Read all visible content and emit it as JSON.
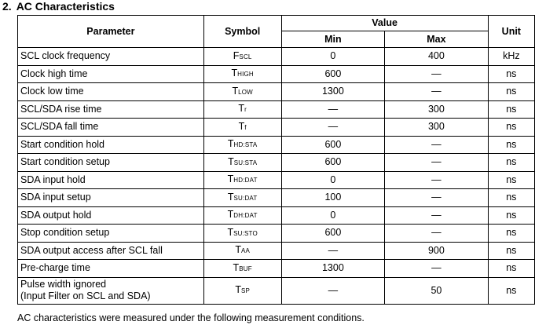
{
  "heading": {
    "number": "2.",
    "title": "AC Characteristics"
  },
  "table": {
    "headers": {
      "parameter": "Parameter",
      "symbol": "Symbol",
      "value": "Value",
      "min": "Min",
      "max": "Max",
      "unit": "Unit"
    },
    "rows": [
      {
        "parameter": "SCL clock frequency",
        "symbol": "F",
        "symbol_sub": "SCL",
        "min": "0",
        "max": "400",
        "unit": "kHz"
      },
      {
        "parameter": "Clock high time",
        "symbol": "T",
        "symbol_sub": "HIGH",
        "min": "600",
        "max": "—",
        "unit": "ns"
      },
      {
        "parameter": "Clock low time",
        "symbol": "T",
        "symbol_sub": "LOW",
        "min": "1300",
        "max": "—",
        "unit": "ns"
      },
      {
        "parameter": "SCL/SDA rise time",
        "symbol": "T",
        "symbol_sub": "r",
        "min": "—",
        "max": "300",
        "unit": "ns"
      },
      {
        "parameter": "SCL/SDA fall time",
        "symbol": "T",
        "symbol_sub": "f",
        "min": "—",
        "max": "300",
        "unit": "ns"
      },
      {
        "parameter": "Start condition hold",
        "symbol": "T",
        "symbol_sub": "HD:STA",
        "min": "600",
        "max": "—",
        "unit": "ns"
      },
      {
        "parameter": "Start condition setup",
        "symbol": "T",
        "symbol_sub": "SU:STA",
        "min": "600",
        "max": "—",
        "unit": "ns"
      },
      {
        "parameter": "SDA input hold",
        "symbol": "T",
        "symbol_sub": "HD:DAT",
        "min": "0",
        "max": "—",
        "unit": "ns"
      },
      {
        "parameter": "SDA input setup",
        "symbol": "T",
        "symbol_sub": "SU:DAT",
        "min": "100",
        "max": "—",
        "unit": "ns"
      },
      {
        "parameter": "SDA output hold",
        "symbol": "T",
        "symbol_sub": "DH:DAT",
        "min": "0",
        "max": "—",
        "unit": "ns"
      },
      {
        "parameter": "Stop condition setup",
        "symbol": "T",
        "symbol_sub": "SU:STO",
        "min": "600",
        "max": "—",
        "unit": "ns"
      },
      {
        "parameter": "SDA output access after SCL fall",
        "symbol": "T",
        "symbol_sub": "AA",
        "min": "—",
        "max": "900",
        "unit": "ns"
      },
      {
        "parameter": "Pre-charge time",
        "symbol": "T",
        "symbol_sub": "BUF",
        "min": "1300",
        "max": "—",
        "unit": "ns"
      }
    ],
    "last_row": {
      "parameter_line1": "Pulse width ignored",
      "parameter_line2": "(Input Filter on SCL and SDA)",
      "symbol": "T",
      "symbol_sub": "SP",
      "min": "—",
      "max": "50",
      "unit": "ns"
    }
  },
  "note": "AC characteristics were measured under the following measurement conditions."
}
